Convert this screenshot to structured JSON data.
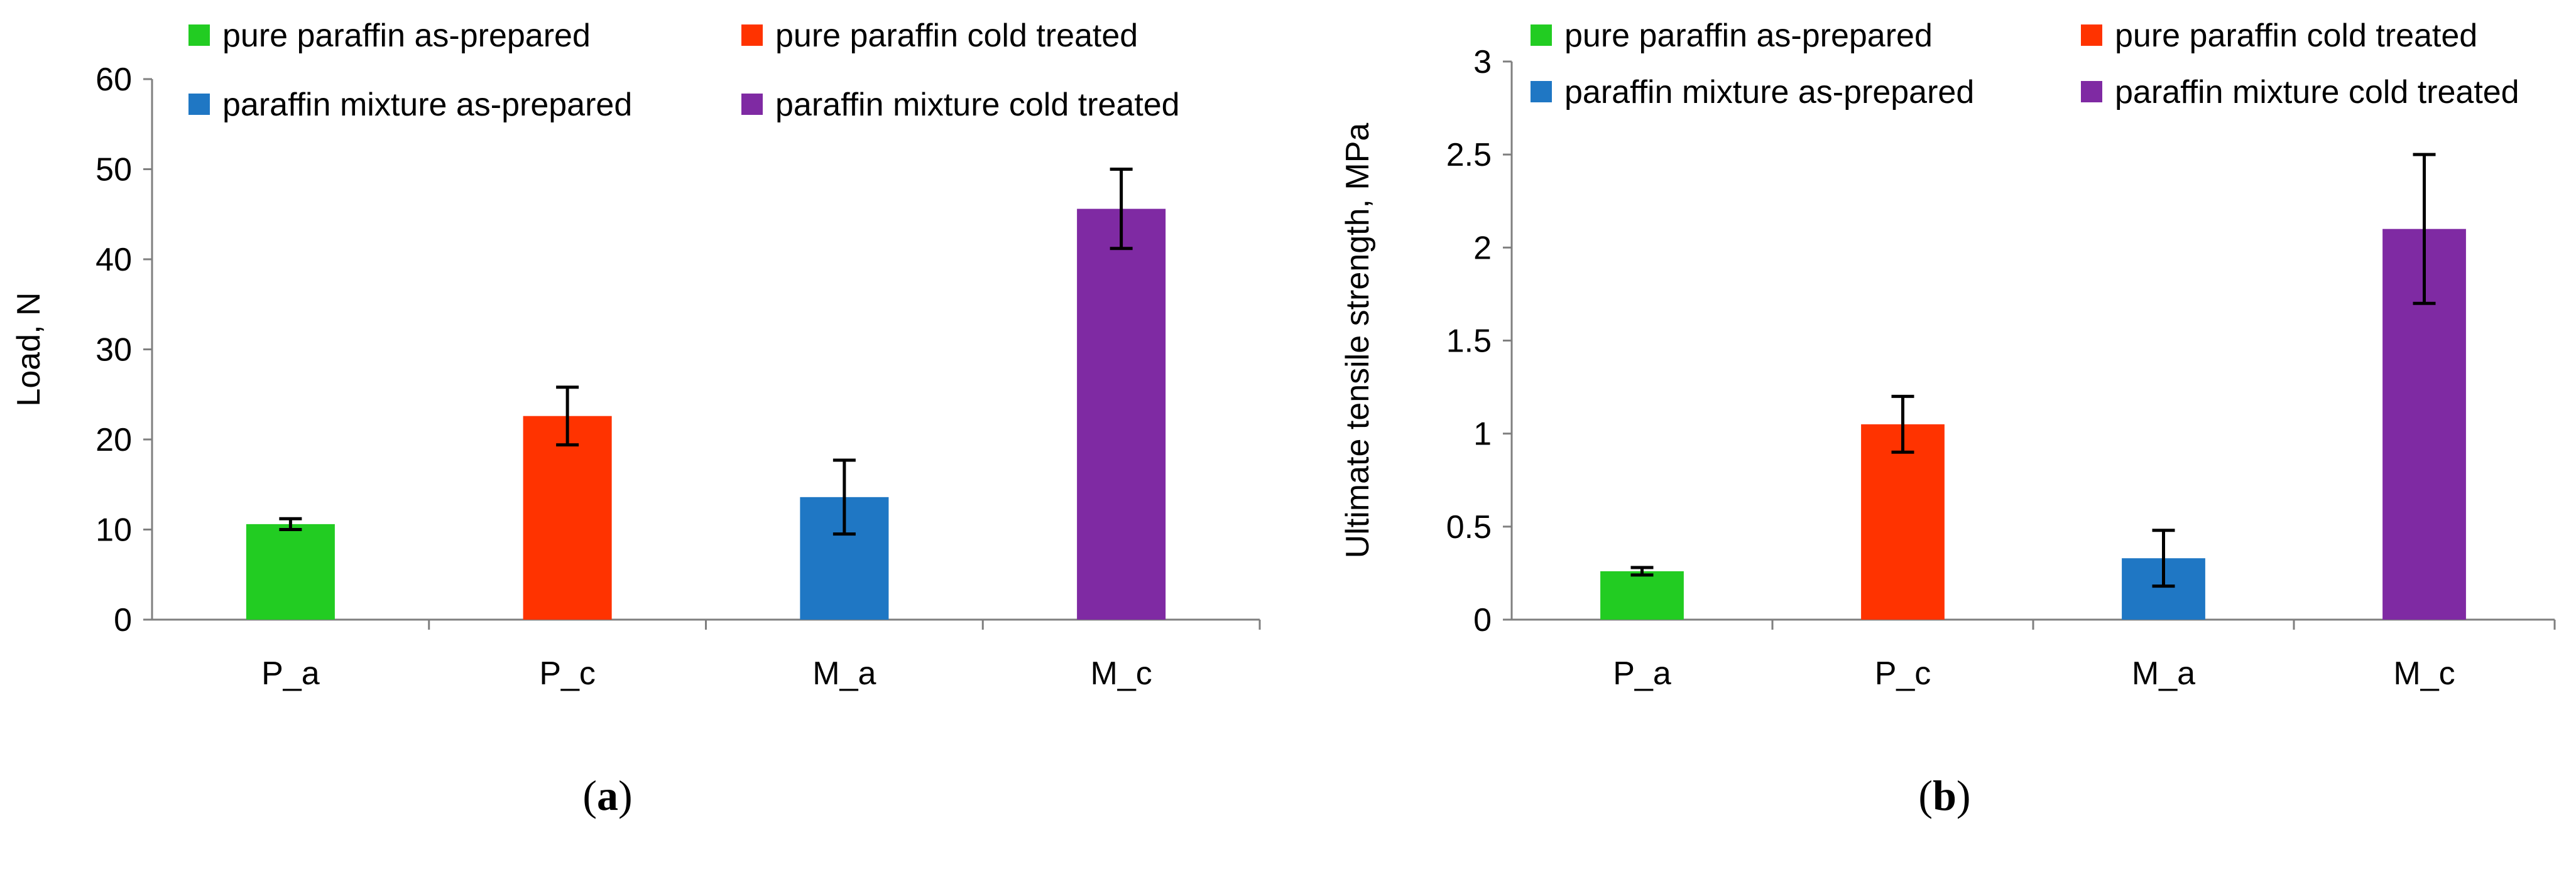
{
  "chart_data": [
    {
      "type": "bar",
      "panel_label": "a",
      "categories": [
        "P_a",
        "P_c",
        "M_a",
        "M_c"
      ],
      "values": [
        10.6,
        22.6,
        13.6,
        45.6
      ],
      "errors": [
        0.6,
        3.2,
        4.1,
        4.4
      ],
      "bar_colors": [
        "#22CC22",
        "#FF3300",
        "#1F77C4",
        "#7F2AA3"
      ],
      "title": "",
      "xlabel": "",
      "ylabel": "Load, N",
      "ylim": [
        0,
        60
      ],
      "yticks": [
        0,
        10,
        20,
        30,
        40,
        50,
        60
      ],
      "ytick_labels": [
        "0",
        "10",
        "20",
        "30",
        "40",
        "50",
        "60"
      ],
      "legend": [
        {
          "label": "pure paraffin as-prepared",
          "color": "#22CC22"
        },
        {
          "label": "pure paraffin cold treated",
          "color": "#FF3300"
        },
        {
          "label": "paraffin mixture as-prepared",
          "color": "#1F77C4"
        },
        {
          "label": "paraffin mixture cold treated",
          "color": "#7F2AA3"
        }
      ],
      "legend_position": "top"
    },
    {
      "type": "bar",
      "panel_label": "b",
      "categories": [
        "P_a",
        "P_c",
        "M_a",
        "M_c"
      ],
      "values": [
        0.26,
        1.05,
        0.33,
        2.1
      ],
      "errors": [
        0.02,
        0.15,
        0.15,
        0.4
      ],
      "bar_colors": [
        "#22CC22",
        "#FF3300",
        "#1F77C4",
        "#7F2AA3"
      ],
      "title": "",
      "xlabel": "",
      "ylabel": "Ultimate tensile strength, MPa",
      "ylim": [
        0,
        3
      ],
      "yticks": [
        0,
        0.5,
        1,
        1.5,
        2,
        2.5,
        3
      ],
      "ytick_labels": [
        "0",
        "0.5",
        "1",
        "1.5",
        "2",
        "2.5",
        "3"
      ],
      "legend": [
        {
          "label": "pure paraffin as-prepared",
          "color": "#22CC22"
        },
        {
          "label": "pure paraffin cold treated",
          "color": "#FF3300"
        },
        {
          "label": "paraffin mixture as-prepared",
          "color": "#1F77C4"
        },
        {
          "label": "paraffin mixture cold treated",
          "color": "#7F2AA3"
        }
      ],
      "legend_position": "top"
    }
  ],
  "captions": [
    {
      "open": "(",
      "letter": "a",
      "close": ")"
    },
    {
      "open": "(",
      "letter": "b",
      "close": ")"
    }
  ]
}
